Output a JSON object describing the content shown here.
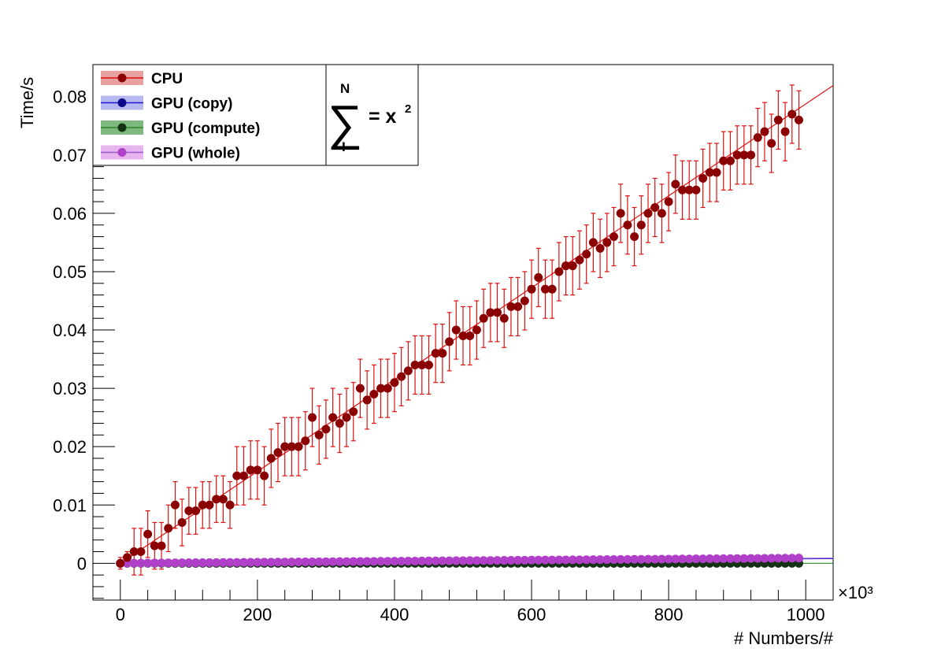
{
  "chart_data": {
    "type": "scatter",
    "xlabel": "# Numbers/#",
    "ylabel": "Time/s",
    "x_multiplier": "×10³",
    "xlim": [
      -40,
      1040
    ],
    "ylim": [
      -0.0063,
      0.0855
    ],
    "xticks": [
      0,
      200,
      400,
      600,
      800,
      1000
    ],
    "xtick_labels": [
      "0",
      "200",
      "400",
      "600",
      "800",
      "1000"
    ],
    "yticks": [
      0,
      0.01,
      0.02,
      0.03,
      0.04,
      0.05,
      0.06,
      0.07,
      0.08
    ],
    "ytick_labels": [
      "0",
      "0.01",
      "0.02",
      "0.03",
      "0.04",
      "0.05",
      "0.06",
      "0.07",
      "0.08"
    ],
    "legend_position": "top-left",
    "formula": {
      "upper": "N",
      "lower": "I",
      "rhs": "= x",
      "power": "2"
    },
    "x_step": 10,
    "series": [
      {
        "name": "CPU",
        "color": "#8b0000",
        "line_color": "#dd1111",
        "fill": "#e8a0a0",
        "fit": {
          "x": [
            0,
            1040
          ],
          "y": [
            0,
            0.0819
          ]
        },
        "values": [
          0,
          0.001,
          0.002,
          0.002,
          0.005,
          0.003,
          0.003,
          0.006,
          0.01,
          0.007,
          0.009,
          0.009,
          0.01,
          0.01,
          0.011,
          0.011,
          0.01,
          0.015,
          0.015,
          0.016,
          0.016,
          0.015,
          0.018,
          0.019,
          0.02,
          0.02,
          0.02,
          0.021,
          0.025,
          0.022,
          0.023,
          0.025,
          0.024,
          0.025,
          0.026,
          0.03,
          0.028,
          0.029,
          0.03,
          0.03,
          0.031,
          0.032,
          0.033,
          0.034,
          0.034,
          0.034,
          0.036,
          0.036,
          0.038,
          0.04,
          0.039,
          0.039,
          0.04,
          0.042,
          0.043,
          0.043,
          0.042,
          0.044,
          0.044,
          0.045,
          0.047,
          0.049,
          0.047,
          0.047,
          0.05,
          0.051,
          0.051,
          0.052,
          0.053,
          0.055,
          0.054,
          0.055,
          0.056,
          0.06,
          0.058,
          0.056,
          0.058,
          0.06,
          0.061,
          0.06,
          0.062,
          0.065,
          0.064,
          0.064,
          0.064,
          0.066,
          0.067,
          0.067,
          0.069,
          0.069,
          0.07,
          0.07,
          0.07,
          0.073,
          0.074,
          0.072,
          0.076,
          0.074,
          0.077,
          0.076
        ],
        "errors": [
          0.001,
          0.001,
          0.004,
          0.004,
          0.004,
          0.004,
          0.004,
          0.004,
          0.004,
          0.004,
          0.004,
          0.004,
          0.004,
          0.004,
          0.004,
          0.004,
          0.004,
          0.005,
          0.005,
          0.005,
          0.005,
          0.005,
          0.005,
          0.005,
          0.005,
          0.005,
          0.005,
          0.005,
          0.005,
          0.005,
          0.005,
          0.005,
          0.005,
          0.005,
          0.005,
          0.005,
          0.005,
          0.005,
          0.005,
          0.005,
          0.005,
          0.005,
          0.005,
          0.005,
          0.005,
          0.005,
          0.005,
          0.005,
          0.005,
          0.005,
          0.005,
          0.005,
          0.005,
          0.005,
          0.005,
          0.005,
          0.005,
          0.005,
          0.005,
          0.005,
          0.005,
          0.005,
          0.005,
          0.005,
          0.005,
          0.005,
          0.005,
          0.005,
          0.005,
          0.005,
          0.005,
          0.005,
          0.005,
          0.005,
          0.005,
          0.005,
          0.005,
          0.005,
          0.005,
          0.005,
          0.005,
          0.005,
          0.005,
          0.005,
          0.005,
          0.005,
          0.005,
          0.005,
          0.005,
          0.005,
          0.005,
          0.005,
          0.005,
          0.005,
          0.005,
          0.005,
          0.005,
          0.005,
          0.005,
          0.005
        ]
      },
      {
        "name": "GPU (copy)",
        "color": "#0a0a8b",
        "line_color": "#1a1ad8",
        "fill": "#b8b8f0",
        "fit": {
          "x": [
            0,
            1040
          ],
          "y": [
            0,
            0.0008
          ]
        },
        "value_range": [
          0,
          0.0008
        ]
      },
      {
        "name": "GPU (compute)",
        "color": "#143214",
        "line_color": "#2a8a2a",
        "fill": "#7fb87f",
        "fit": {
          "x": [
            0,
            1040
          ],
          "y": [
            0,
            0.0
          ]
        },
        "value_range": [
          0,
          0.0
        ]
      },
      {
        "name": "GPU (whole)",
        "color": "#b040c8",
        "line_color": "#9a5ad0",
        "fill": "#e8b4f0",
        "fit": {
          "x": [
            0,
            1040
          ],
          "y": [
            0,
            0.0009
          ]
        },
        "value_range": [
          0,
          0.0009
        ]
      }
    ]
  }
}
